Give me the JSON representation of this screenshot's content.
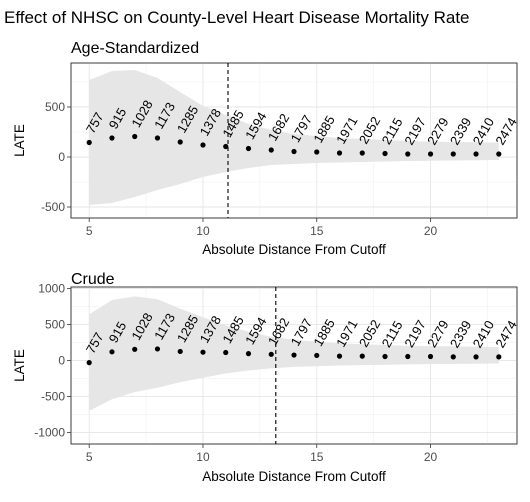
{
  "title": "Effect of NHSC on County-Level Heart Disease Mortality Rate",
  "chart_data": [
    {
      "type": "scatter",
      "title": "Age-Standardized",
      "xlabel": "Absolute Distance From Cutoff",
      "ylabel": "LATE",
      "xlim": [
        4.2,
        23.8
      ],
      "ylim": [
        -610,
        940
      ],
      "xticks": [
        5,
        10,
        15,
        20
      ],
      "yticks": [
        -500,
        0,
        500
      ],
      "grid": true,
      "cutoff_line_x": 11.1,
      "points": [
        {
          "x": 5,
          "y": 145,
          "n": "757",
          "ci": [
            -480,
            770
          ]
        },
        {
          "x": 6,
          "y": 190,
          "n": "915",
          "ci": [
            -460,
            860
          ]
        },
        {
          "x": 7,
          "y": 205,
          "n": "1028",
          "ci": [
            -400,
            870
          ]
        },
        {
          "x": 8,
          "y": 190,
          "n": "1173",
          "ci": [
            -330,
            790
          ]
        },
        {
          "x": 9,
          "y": 150,
          "n": "1285",
          "ci": [
            -270,
            650
          ]
        },
        {
          "x": 10,
          "y": 120,
          "n": "1378",
          "ci": [
            -200,
            510
          ]
        },
        {
          "x": 11,
          "y": 105,
          "n": "1485",
          "ci": [
            -150,
            420
          ]
        },
        {
          "x": 12,
          "y": 85,
          "n": "1594",
          "ci": [
            -110,
            330
          ]
        },
        {
          "x": 13,
          "y": 70,
          "n": "1682",
          "ci": [
            -80,
            270
          ]
        },
        {
          "x": 14,
          "y": 55,
          "n": "1797",
          "ci": [
            -70,
            230
          ]
        },
        {
          "x": 15,
          "y": 50,
          "n": "1885",
          "ci": [
            -60,
            210
          ]
        },
        {
          "x": 16,
          "y": 40,
          "n": "1971",
          "ci": [
            -55,
            190
          ]
        },
        {
          "x": 17,
          "y": 40,
          "n": "2052",
          "ci": [
            -50,
            180
          ]
        },
        {
          "x": 18,
          "y": 35,
          "n": "2115",
          "ci": [
            -45,
            170
          ]
        },
        {
          "x": 19,
          "y": 30,
          "n": "2197",
          "ci": [
            -40,
            160
          ]
        },
        {
          "x": 20,
          "y": 30,
          "n": "2279",
          "ci": [
            -38,
            155
          ]
        },
        {
          "x": 21,
          "y": 30,
          "n": "2339",
          "ci": [
            -35,
            150
          ]
        },
        {
          "x": 22,
          "y": 30,
          "n": "2410",
          "ci": [
            -32,
            148
          ]
        },
        {
          "x": 23,
          "y": 30,
          "n": "2474",
          "ci": [
            -30,
            145
          ]
        }
      ]
    },
    {
      "type": "scatter",
      "title": "Crude",
      "xlabel": "Absolute Distance From Cutoff",
      "ylabel": "LATE",
      "xlim": [
        4.2,
        23.8
      ],
      "ylim": [
        -1160,
        1020
      ],
      "xticks": [
        5,
        10,
        15,
        20
      ],
      "yticks": [
        -1000,
        -500,
        0,
        500,
        1000
      ],
      "grid": true,
      "cutoff_line_x": 13.2,
      "points": [
        {
          "x": 5,
          "y": -30,
          "n": "757",
          "ci": [
            -700,
            640
          ]
        },
        {
          "x": 6,
          "y": 120,
          "n": "915",
          "ci": [
            -540,
            840
          ]
        },
        {
          "x": 7,
          "y": 155,
          "n": "1028",
          "ci": [
            -440,
            890
          ]
        },
        {
          "x": 8,
          "y": 160,
          "n": "1173",
          "ci": [
            -380,
            850
          ]
        },
        {
          "x": 9,
          "y": 125,
          "n": "1285",
          "ci": [
            -300,
            720
          ]
        },
        {
          "x": 10,
          "y": 115,
          "n": "1378",
          "ci": [
            -240,
            600
          ]
        },
        {
          "x": 11,
          "y": 110,
          "n": "1485",
          "ci": [
            -180,
            490
          ]
        },
        {
          "x": 12,
          "y": 95,
          "n": "1594",
          "ci": [
            -140,
            400
          ]
        },
        {
          "x": 13,
          "y": 85,
          "n": "1682",
          "ci": [
            -110,
            330
          ]
        },
        {
          "x": 14,
          "y": 75,
          "n": "1797",
          "ci": [
            -90,
            290
          ]
        },
        {
          "x": 15,
          "y": 70,
          "n": "1885",
          "ci": [
            -80,
            260
          ]
        },
        {
          "x": 16,
          "y": 60,
          "n": "1971",
          "ci": [
            -70,
            240
          ]
        },
        {
          "x": 17,
          "y": 60,
          "n": "2052",
          "ci": [
            -65,
            225
          ]
        },
        {
          "x": 18,
          "y": 55,
          "n": "2115",
          "ci": [
            -60,
            215
          ]
        },
        {
          "x": 19,
          "y": 55,
          "n": "2197",
          "ci": [
            -55,
            205
          ]
        },
        {
          "x": 20,
          "y": 55,
          "n": "2279",
          "ci": [
            -50,
            200
          ]
        },
        {
          "x": 21,
          "y": 50,
          "n": "2339",
          "ci": [
            -48,
            195
          ]
        },
        {
          "x": 22,
          "y": 50,
          "n": "2410",
          "ci": [
            -45,
            190
          ]
        },
        {
          "x": 23,
          "y": 50,
          "n": "2474",
          "ci": [
            -42,
            185
          ]
        }
      ]
    }
  ]
}
